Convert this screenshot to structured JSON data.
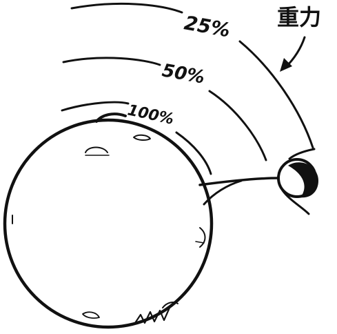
{
  "gravity_label": "重力",
  "levels": [
    {
      "label": "100%"
    },
    {
      "label": "50%"
    },
    {
      "label": "25%"
    }
  ]
}
